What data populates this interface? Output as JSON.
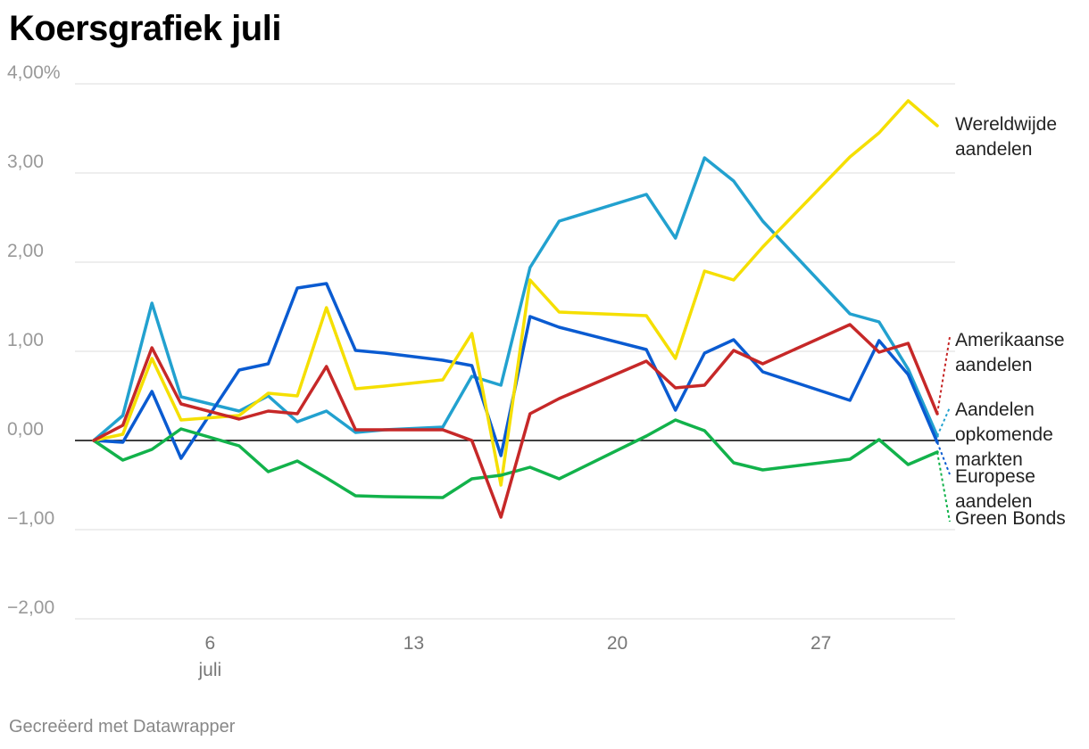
{
  "chart_data": {
    "type": "line",
    "title": "Koersgrafiek juli",
    "xlabel": "",
    "ylabel": "",
    "ylim": [
      -2,
      4
    ],
    "y_ticks": [
      {
        "value": 4,
        "label": "4,00%"
      },
      {
        "value": 3,
        "label": "3,00"
      },
      {
        "value": 2,
        "label": "2,00"
      },
      {
        "value": 1,
        "label": "1,00"
      },
      {
        "value": 0,
        "label": "0,00"
      },
      {
        "value": -1,
        "label": "−1,00"
      },
      {
        "value": -2,
        "label": "−2,00"
      }
    ],
    "xlim": [
      2,
      31
    ],
    "x_ticks": [
      {
        "value": 6,
        "label": "6",
        "sublabel": "juli"
      },
      {
        "value": 13,
        "label": "13"
      },
      {
        "value": 20,
        "label": "20"
      },
      {
        "value": 27,
        "label": "27"
      }
    ],
    "x": [
      2,
      3,
      4,
      5,
      7,
      8,
      9,
      10,
      11,
      12,
      14,
      15,
      16,
      17,
      18,
      21,
      22,
      23,
      24,
      25,
      28,
      29,
      30,
      31
    ],
    "series": [
      {
        "name": "Wereldwijde aandelen",
        "legend_lines": [
          "Wereldwijde",
          "aandelen"
        ],
        "color": "#f5df00",
        "values": [
          0,
          0.07,
          0.92,
          0.23,
          0.28,
          0.53,
          0.5,
          1.49,
          0.58,
          0.61,
          0.68,
          1.2,
          -0.5,
          1.8,
          1.44,
          1.4,
          0.92,
          1.9,
          1.8,
          2.17,
          3.18,
          3.45,
          3.81,
          3.53
        ]
      },
      {
        "name": "Amerikaanse aandelen",
        "legend_lines": [
          "Amerikaanse",
          "aandelen"
        ],
        "color": "#c62828",
        "values": [
          0,
          0.17,
          1.04,
          0.41,
          0.24,
          0.33,
          0.3,
          0.83,
          0.12,
          0.12,
          0.12,
          0.0,
          -0.86,
          0.3,
          0.47,
          0.89,
          0.59,
          0.62,
          1.01,
          0.86,
          1.3,
          0.99,
          1.09,
          0.3
        ]
      },
      {
        "name": "Aandelen opkomende markten",
        "legend_lines": [
          "Aandelen",
          "opkomende",
          "markten"
        ],
        "color": "#22a1cf",
        "values": [
          0,
          0.28,
          1.54,
          0.49,
          0.33,
          0.5,
          0.21,
          0.33,
          0.09,
          0.12,
          0.15,
          0.72,
          0.62,
          1.94,
          2.46,
          2.76,
          2.27,
          3.17,
          2.91,
          2.46,
          1.42,
          1.33,
          0.8,
          0.05
        ]
      },
      {
        "name": "Europese aandelen",
        "legend_lines": [
          "Europese",
          "aandelen"
        ],
        "color": "#0a5bd1",
        "values": [
          0,
          -0.02,
          0.55,
          -0.2,
          0.79,
          0.86,
          1.71,
          1.76,
          1.01,
          0.98,
          0.9,
          0.84,
          -0.17,
          1.39,
          1.27,
          1.02,
          0.34,
          0.98,
          1.13,
          0.77,
          0.45,
          1.12,
          0.74,
          -0.02
        ]
      },
      {
        "name": "Green Bonds",
        "legend_lines": [
          "Green Bonds"
        ],
        "color": "#12b24b",
        "values": [
          0,
          -0.22,
          -0.1,
          0.13,
          -0.06,
          -0.35,
          -0.23,
          -0.42,
          -0.62,
          -0.63,
          -0.64,
          -0.43,
          -0.39,
          -0.3,
          -0.43,
          0.05,
          0.23,
          0.11,
          -0.25,
          -0.33,
          -0.21,
          0.01,
          -0.27,
          -0.13
        ]
      }
    ]
  },
  "footer": {
    "credit": "Gecreëerd met Datawrapper"
  }
}
